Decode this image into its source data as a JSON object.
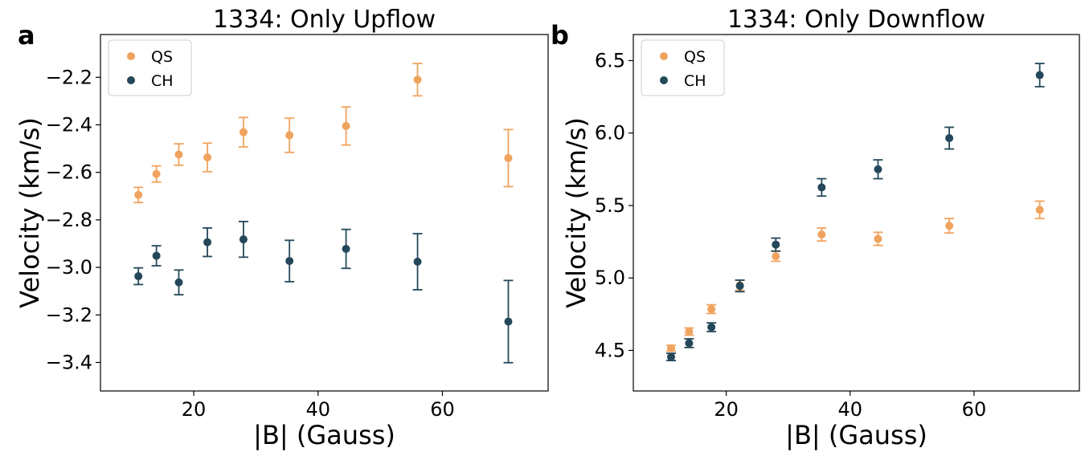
{
  "colors": {
    "QS": "#F0A35E",
    "CH": "#24485A"
  },
  "chart_data": [
    {
      "type": "scatter",
      "panel_label": "a",
      "title": "1334: Only Upflow",
      "xlabel": "|B| (Gauss)",
      "ylabel": "Velocity (km/s)",
      "xlim": [
        5,
        77
      ],
      "ylim": [
        -3.52,
        -2.02
      ],
      "xticks": [
        20,
        40,
        60
      ],
      "yticks": [
        -2.2,
        -2.4,
        -2.6,
        -2.8,
        -3.0,
        -3.2,
        -3.4
      ],
      "xtick_labels": [
        "20",
        "40",
        "60"
      ],
      "ytick_labels": [
        "−2.2",
        "−2.4",
        "−2.6",
        "−2.8",
        "−3.0",
        "−3.2",
        "−3.4"
      ],
      "grid": false,
      "legend_position": "top-left",
      "series": [
        {
          "name": "QS",
          "x": [
            11.1,
            14.0,
            17.6,
            22.2,
            28.0,
            35.4,
            44.5,
            56.0,
            70.6
          ],
          "y": [
            -2.695,
            -2.607,
            -2.525,
            -2.537,
            -2.431,
            -2.444,
            -2.405,
            -2.21,
            -2.54
          ],
          "err": [
            0.032,
            0.034,
            0.045,
            0.06,
            0.062,
            0.072,
            0.08,
            0.068,
            0.12
          ]
        },
        {
          "name": "CH",
          "x": [
            11.1,
            14.0,
            17.6,
            22.2,
            28.0,
            35.4,
            44.5,
            56.0,
            70.6
          ],
          "y": [
            -3.037,
            -2.951,
            -3.063,
            -2.894,
            -2.882,
            -2.973,
            -2.922,
            -2.976,
            -3.228
          ],
          "err": [
            0.035,
            0.042,
            0.052,
            0.06,
            0.075,
            0.087,
            0.082,
            0.118,
            0.173
          ]
        }
      ]
    },
    {
      "type": "scatter",
      "panel_label": "b",
      "title": "1334: Only Downflow",
      "xlabel": "|B| (Gauss)",
      "ylabel": "Velocity (km/s)",
      "xlim": [
        5,
        77
      ],
      "ylim": [
        4.22,
        6.68
      ],
      "xticks": [
        20,
        40,
        60
      ],
      "yticks": [
        4.5,
        5.0,
        5.5,
        6.0,
        6.5
      ],
      "xtick_labels": [
        "20",
        "40",
        "60"
      ],
      "ytick_labels": [
        "4.5",
        "5.0",
        "5.5",
        "6.0",
        "6.5"
      ],
      "grid": false,
      "legend_position": "top-left",
      "series": [
        {
          "name": "QS",
          "x": [
            11.1,
            14.0,
            17.6,
            22.2,
            28.0,
            35.4,
            44.5,
            56.0,
            70.6
          ],
          "y": [
            4.515,
            4.63,
            4.785,
            4.95,
            5.15,
            5.3,
            5.27,
            5.36,
            5.47
          ],
          "err": [
            0.02,
            0.025,
            0.03,
            0.035,
            0.035,
            0.045,
            0.045,
            0.05,
            0.06
          ]
        },
        {
          "name": "CH",
          "x": [
            11.1,
            14.0,
            17.6,
            22.2,
            28.0,
            35.4,
            44.5,
            56.0,
            70.6
          ],
          "y": [
            4.455,
            4.55,
            4.66,
            4.945,
            5.23,
            5.625,
            5.75,
            5.965,
            6.4
          ],
          "err": [
            0.025,
            0.03,
            0.03,
            0.04,
            0.045,
            0.06,
            0.065,
            0.075,
            0.08
          ]
        }
      ]
    }
  ]
}
